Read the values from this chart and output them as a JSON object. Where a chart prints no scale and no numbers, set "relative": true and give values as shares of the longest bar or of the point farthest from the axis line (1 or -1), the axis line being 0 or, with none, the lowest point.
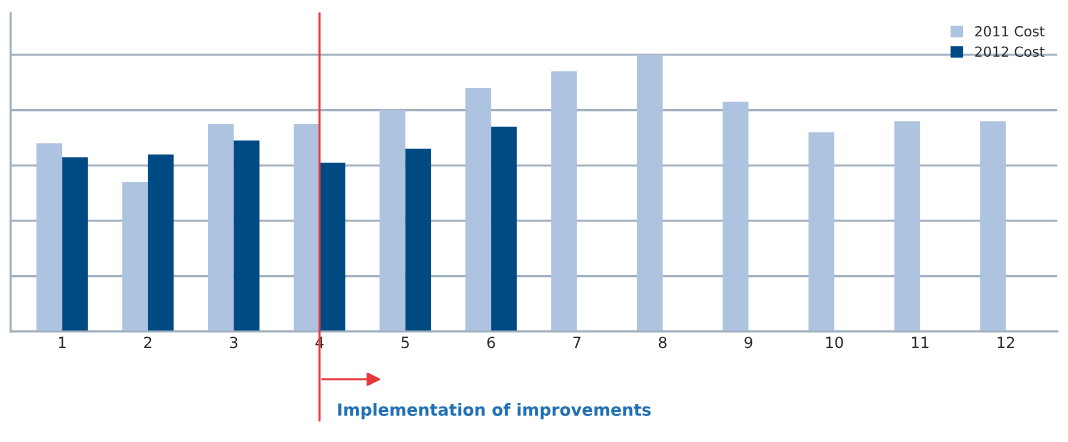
{
  "chart_data": {
    "type": "bar",
    "relative": true,
    "categories": [
      "1",
      "2",
      "3",
      "4",
      "5",
      "6",
      "7",
      "8",
      "9",
      "10",
      "11",
      "12"
    ],
    "series": [
      {
        "name": "2011 Cost",
        "color": "#adc3e0",
        "values": [
          0.68,
          0.54,
          0.75,
          0.75,
          0.8,
          0.88,
          0.94,
          1,
          0.83,
          0.72,
          0.76,
          0.76
        ]
      },
      {
        "name": "2012 Cost",
        "color": "#004a84",
        "values": [
          0.63,
          0.64,
          0.69,
          0.61,
          0.66,
          0.74,
          0,
          0,
          0,
          0,
          0,
          0
        ]
      }
    ],
    "ref_lines": [
      {
        "axis": "x",
        "value": "4",
        "color": "#e8383d"
      }
    ],
    "annotations": [
      {
        "text": "Implementation of improvements",
        "x": "4"
      }
    ],
    "grid": "y",
    "legend": "top right",
    "tick_labels": "x"
  }
}
